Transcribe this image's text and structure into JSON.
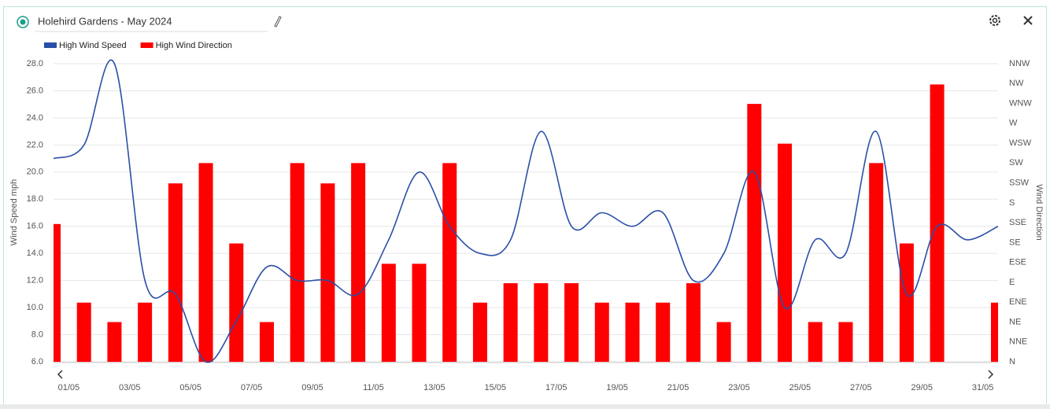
{
  "chart_data": {
    "type": "bar-line",
    "title": "Holehird Gardens - May 2024",
    "y_label": "Wind Speed mph",
    "y2_label": "Wind Direction",
    "categories": [
      "01/05",
      null,
      "03/05",
      null,
      "05/05",
      null,
      "07/05",
      null,
      "09/05",
      null,
      "11/05",
      null,
      "13/05",
      null,
      "15/05",
      null,
      "17/05",
      null,
      "19/05",
      null,
      "21/05",
      null,
      "23/05",
      null,
      "25/05",
      null,
      "27/05",
      null,
      "29/05",
      null,
      "31/05",
      null
    ],
    "series": [
      {
        "name": "High Wind Speed",
        "type": "line",
        "color": "#2a4fa8",
        "values": [
          21,
          22,
          28,
          12,
          11,
          6,
          9,
          13,
          12,
          12,
          11,
          15,
          20,
          16,
          14,
          15,
          23,
          16,
          17,
          16,
          17,
          12,
          14,
          20,
          10,
          15,
          14,
          23,
          11,
          16,
          15,
          16
        ]
      },
      {
        "name": "High Wind Direction",
        "type": "bar",
        "axis": "y2",
        "color": "#ff0000",
        "values": [
          156,
          67,
          45,
          67,
          202,
          225,
          134,
          45,
          225,
          202,
          225,
          111,
          111,
          225,
          67,
          89,
          89,
          89,
          67,
          67,
          67,
          89,
          45,
          292,
          247,
          45,
          45,
          225,
          134,
          314,
          null,
          67
        ]
      }
    ],
    "ylim": [
      6,
      28
    ],
    "yticks": [
      {
        "value": 6,
        "label": "6.0"
      },
      {
        "value": 8,
        "label": "8.0"
      },
      {
        "value": 10,
        "label": "10.0"
      },
      {
        "value": 12,
        "label": "12.0"
      },
      {
        "value": 14,
        "label": "14.0"
      },
      {
        "value": 16,
        "label": "16.0"
      },
      {
        "value": 18,
        "label": "18.0"
      },
      {
        "value": 20,
        "label": "20.0"
      },
      {
        "value": 22,
        "label": "22.0"
      },
      {
        "value": 24,
        "label": "24.0"
      },
      {
        "value": 26,
        "label": "26.0"
      },
      {
        "value": 28,
        "label": "28.0"
      }
    ],
    "y2lim": [
      0,
      337.5
    ],
    "y2ticks": [
      {
        "value": 0,
        "label": "N"
      },
      {
        "value": 22.5,
        "label": "NNE"
      },
      {
        "value": 45,
        "label": "NE"
      },
      {
        "value": 67.5,
        "label": "ENE"
      },
      {
        "value": 90,
        "label": "E"
      },
      {
        "value": 112.5,
        "label": "ESE"
      },
      {
        "value": 135,
        "label": "SE"
      },
      {
        "value": 157.5,
        "label": "SSE"
      },
      {
        "value": 180,
        "label": "S"
      },
      {
        "value": 202.5,
        "label": "SSW"
      },
      {
        "value": 225,
        "label": "SW"
      },
      {
        "value": 247.5,
        "label": "WSW"
      },
      {
        "value": 270,
        "label": "W"
      },
      {
        "value": 292.5,
        "label": "WNW"
      },
      {
        "value": 315,
        "label": "NW"
      },
      {
        "value": 337.5,
        "label": "NNW"
      }
    ],
    "grid": true,
    "legend": "top-left"
  }
}
